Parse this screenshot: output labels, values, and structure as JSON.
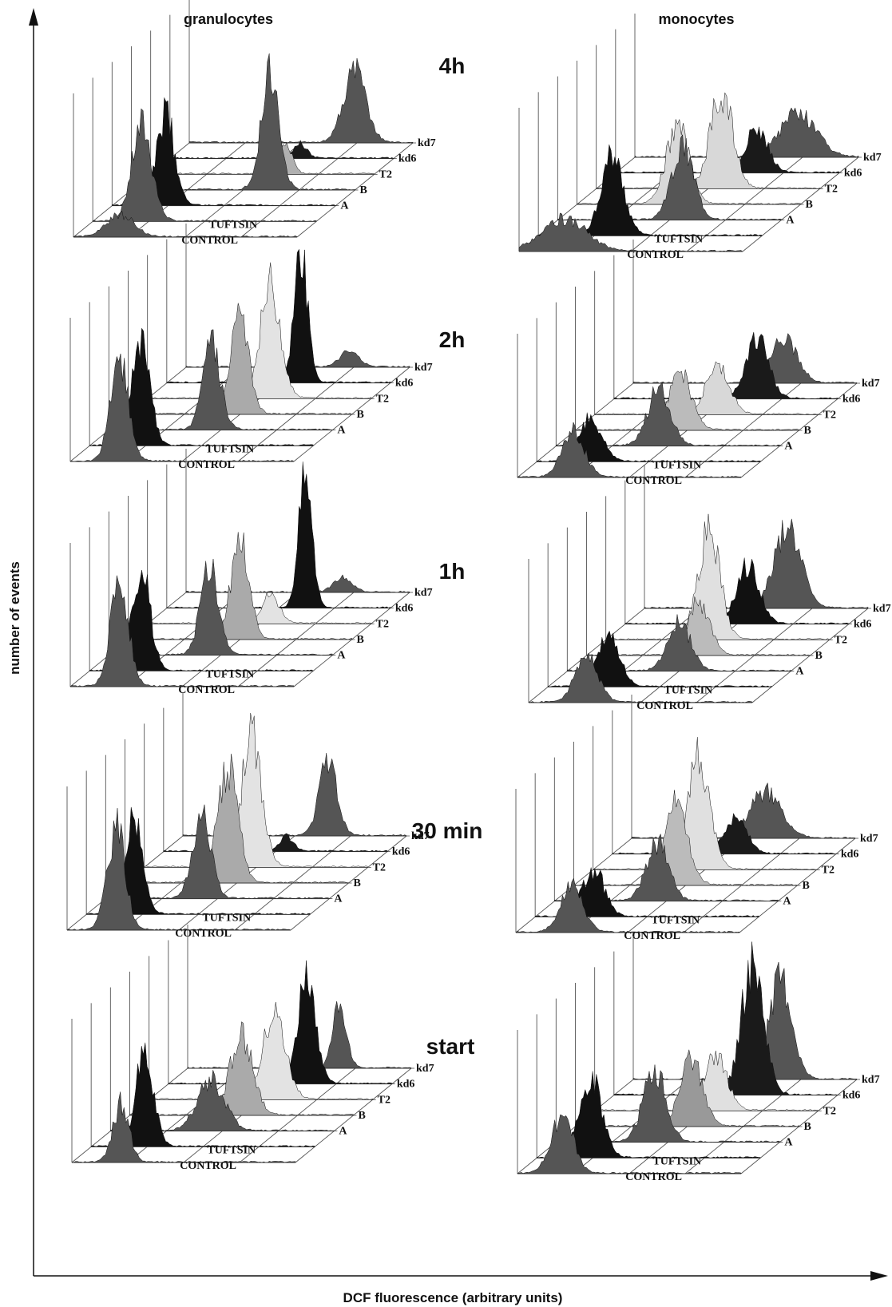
{
  "chart_data": {
    "type": "area",
    "subtype": "stacked 3D histograms (flow cytometry)",
    "xlabel": "DCF fluorescence (arbitrary units)",
    "ylabel": "number of events",
    "columns": [
      "granulocytes",
      "monocytes"
    ],
    "series_labels": [
      "CONTROL",
      "TUFTSIN",
      "A",
      "B",
      "T2",
      "kd6",
      "kd7"
    ],
    "panels": [
      {
        "time": "4h",
        "granulocytes": [
          {
            "series": "CONTROL",
            "peak": 0.21,
            "height": 0.15,
            "width": 0.06,
            "color": "#555555"
          },
          {
            "series": "TUFTSIN",
            "peak": 0.22,
            "height": 0.66,
            "width": 0.045,
            "color": "#555555"
          },
          {
            "series": "A",
            "peak": 0.24,
            "height": 0.62,
            "width": 0.04,
            "color": "#111111"
          },
          {
            "series": "B",
            "peak": 0.62,
            "height": 0.8,
            "width": 0.04,
            "color": "#555555"
          },
          {
            "series": "T2",
            "peak": 0.6,
            "height": 0.22,
            "width": 0.03,
            "color": "#b0b0b0"
          },
          {
            "series": "kd6",
            "peak": 0.58,
            "height": 0.1,
            "width": 0.03,
            "color": "#1a1a1a"
          },
          {
            "series": "kd7",
            "peak": 0.74,
            "height": 0.5,
            "width": 0.05,
            "color": "#555555"
          }
        ],
        "monocytes": [
          {
            "series": "CONTROL",
            "peak": 0.2,
            "height": 0.22,
            "width": 0.1,
            "color": "#555555"
          },
          {
            "series": "TUFTSIN",
            "peak": 0.33,
            "height": 0.55,
            "width": 0.05,
            "color": "#111111"
          },
          {
            "series": "A",
            "peak": 0.56,
            "height": 0.5,
            "width": 0.05,
            "color": "#555555"
          },
          {
            "series": "B",
            "peak": 0.45,
            "height": 0.55,
            "width": 0.05,
            "color": "#d8d8d8"
          },
          {
            "series": "T2",
            "peak": 0.56,
            "height": 0.66,
            "width": 0.05,
            "color": "#d8d8d8"
          },
          {
            "series": "kd6",
            "peak": 0.63,
            "height": 0.3,
            "width": 0.05,
            "color": "#1a1a1a"
          },
          {
            "series": "kd7",
            "peak": 0.73,
            "height": 0.3,
            "width": 0.08,
            "color": "#555555"
          }
        ]
      },
      {
        "time": "2h",
        "granulocytes": [
          {
            "series": "CONTROL",
            "peak": 0.22,
            "height": 0.68,
            "width": 0.04,
            "color": "#555555"
          },
          {
            "series": "TUFTSIN",
            "peak": 0.23,
            "height": 0.7,
            "width": 0.04,
            "color": "#111111"
          },
          {
            "series": "A",
            "peak": 0.46,
            "height": 0.58,
            "width": 0.04,
            "color": "#555555"
          },
          {
            "series": "B",
            "peak": 0.5,
            "height": 0.66,
            "width": 0.04,
            "color": "#aaaaaa"
          },
          {
            "series": "T2",
            "peak": 0.55,
            "height": 0.78,
            "width": 0.045,
            "color": "#e3e3e3"
          },
          {
            "series": "kd6",
            "peak": 0.6,
            "height": 0.9,
            "width": 0.03,
            "color": "#111111"
          },
          {
            "series": "kd7",
            "peak": 0.73,
            "height": 0.12,
            "width": 0.04,
            "color": "#555555"
          }
        ],
        "monocytes": [
          {
            "series": "CONTROL",
            "peak": 0.25,
            "height": 0.32,
            "width": 0.05,
            "color": "#555555"
          },
          {
            "series": "TUFTSIN",
            "peak": 0.24,
            "height": 0.3,
            "width": 0.05,
            "color": "#111111"
          },
          {
            "series": "A",
            "peak": 0.46,
            "height": 0.4,
            "width": 0.05,
            "color": "#555555"
          },
          {
            "series": "B",
            "peak": 0.47,
            "height": 0.4,
            "width": 0.05,
            "color": "#bbbbbb"
          },
          {
            "series": "T2",
            "peak": 0.55,
            "height": 0.35,
            "width": 0.05,
            "color": "#d8d8d8"
          },
          {
            "series": "kd6",
            "peak": 0.64,
            "height": 0.42,
            "width": 0.05,
            "color": "#1a1a1a"
          },
          {
            "series": "kd7",
            "peak": 0.67,
            "height": 0.32,
            "width": 0.06,
            "color": "#555555"
          }
        ]
      },
      {
        "time": "1h",
        "granulocytes": [
          {
            "series": "CONTROL",
            "peak": 0.22,
            "height": 0.72,
            "width": 0.04,
            "color": "#555555"
          },
          {
            "series": "TUFTSIN",
            "peak": 0.23,
            "height": 0.7,
            "width": 0.04,
            "color": "#111111"
          },
          {
            "series": "A",
            "peak": 0.45,
            "height": 0.6,
            "width": 0.04,
            "color": "#555555"
          },
          {
            "series": "B",
            "peak": 0.5,
            "height": 0.7,
            "width": 0.04,
            "color": "#aaaaaa"
          },
          {
            "series": "T2",
            "peak": 0.55,
            "height": 0.2,
            "width": 0.04,
            "color": "#e3e3e3"
          },
          {
            "series": "kd6",
            "peak": 0.62,
            "height": 0.9,
            "width": 0.03,
            "color": "#111111"
          },
          {
            "series": "kd7",
            "peak": 0.7,
            "height": 0.1,
            "width": 0.04,
            "color": "#555555"
          }
        ],
        "monocytes": [
          {
            "series": "CONTROL",
            "peak": 0.26,
            "height": 0.32,
            "width": 0.05,
            "color": "#555555"
          },
          {
            "series": "TUFTSIN",
            "peak": 0.27,
            "height": 0.35,
            "width": 0.05,
            "color": "#111111"
          },
          {
            "series": "A",
            "peak": 0.5,
            "height": 0.35,
            "width": 0.05,
            "color": "#555555"
          },
          {
            "series": "B",
            "peak": 0.5,
            "height": 0.35,
            "width": 0.05,
            "color": "#bbbbbb"
          },
          {
            "series": "T2",
            "peak": 0.46,
            "height": 0.75,
            "width": 0.05,
            "color": "#e0e0e0"
          },
          {
            "series": "kd6",
            "peak": 0.55,
            "height": 0.4,
            "width": 0.05,
            "color": "#111111"
          },
          {
            "series": "kd7",
            "peak": 0.64,
            "height": 0.55,
            "width": 0.06,
            "color": "#555555"
          }
        ]
      },
      {
        "time": "30 min",
        "granulocytes": [
          {
            "series": "CONTROL",
            "peak": 0.22,
            "height": 0.7,
            "width": 0.04,
            "color": "#555555"
          },
          {
            "series": "TUFTSIN",
            "peak": 0.21,
            "height": 0.7,
            "width": 0.04,
            "color": "#111111"
          },
          {
            "series": "A",
            "peak": 0.43,
            "height": 0.6,
            "width": 0.04,
            "color": "#555555"
          },
          {
            "series": "B",
            "peak": 0.46,
            "height": 0.8,
            "width": 0.045,
            "color": "#aaaaaa"
          },
          {
            "series": "T2",
            "peak": 0.48,
            "height": 0.9,
            "width": 0.045,
            "color": "#e3e3e3"
          },
          {
            "series": "kd6",
            "peak": 0.55,
            "height": 0.1,
            "width": 0.03,
            "color": "#1a1a1a"
          },
          {
            "series": "kd7",
            "peak": 0.65,
            "height": 0.5,
            "width": 0.04,
            "color": "#555555"
          }
        ],
        "monocytes": [
          {
            "series": "CONTROL",
            "peak": 0.25,
            "height": 0.32,
            "width": 0.05,
            "color": "#555555"
          },
          {
            "series": "TUFTSIN",
            "peak": 0.26,
            "height": 0.32,
            "width": 0.05,
            "color": "#111111"
          },
          {
            "series": "A",
            "peak": 0.46,
            "height": 0.4,
            "width": 0.05,
            "color": "#555555"
          },
          {
            "series": "B",
            "peak": 0.46,
            "height": 0.55,
            "width": 0.05,
            "color": "#bbbbbb"
          },
          {
            "series": "T2",
            "peak": 0.47,
            "height": 0.78,
            "width": 0.05,
            "color": "#e0e0e0"
          },
          {
            "series": "kd6",
            "peak": 0.55,
            "height": 0.25,
            "width": 0.05,
            "color": "#1a1a1a"
          },
          {
            "series": "kd7",
            "peak": 0.6,
            "height": 0.32,
            "width": 0.07,
            "color": "#555555"
          }
        ]
      },
      {
        "time": "start",
        "granulocytes": [
          {
            "series": "CONTROL",
            "peak": 0.22,
            "height": 0.4,
            "width": 0.035,
            "color": "#555555"
          },
          {
            "series": "TUFTSIN",
            "peak": 0.24,
            "height": 0.66,
            "width": 0.04,
            "color": "#111111"
          },
          {
            "series": "A",
            "peak": 0.45,
            "height": 0.35,
            "width": 0.06,
            "color": "#555555"
          },
          {
            "series": "B",
            "peak": 0.5,
            "height": 0.55,
            "width": 0.05,
            "color": "#aaaaaa"
          },
          {
            "series": "T2",
            "peak": 0.56,
            "height": 0.62,
            "width": 0.05,
            "color": "#e3e3e3"
          },
          {
            "series": "kd6",
            "peak": 0.62,
            "height": 0.75,
            "width": 0.04,
            "color": "#111111"
          },
          {
            "series": "kd7",
            "peak": 0.68,
            "height": 0.45,
            "width": 0.03,
            "color": "#555555"
          }
        ],
        "monocytes": [
          {
            "series": "CONTROL",
            "peak": 0.2,
            "height": 0.4,
            "width": 0.05,
            "color": "#555555"
          },
          {
            "series": "TUFTSIN",
            "peak": 0.24,
            "height": 0.55,
            "width": 0.05,
            "color": "#111111"
          },
          {
            "series": "A",
            "peak": 0.44,
            "height": 0.5,
            "width": 0.05,
            "color": "#555555"
          },
          {
            "series": "B",
            "peak": 0.52,
            "height": 0.45,
            "width": 0.05,
            "color": "#999999"
          },
          {
            "series": "T2",
            "peak": 0.54,
            "height": 0.4,
            "width": 0.05,
            "color": "#e0e0e0"
          },
          {
            "series": "kd6",
            "peak": 0.62,
            "height": 0.9,
            "width": 0.05,
            "color": "#1a1a1a"
          },
          {
            "series": "kd7",
            "peak": 0.66,
            "height": 0.7,
            "width": 0.05,
            "color": "#555555"
          }
        ]
      }
    ]
  }
}
